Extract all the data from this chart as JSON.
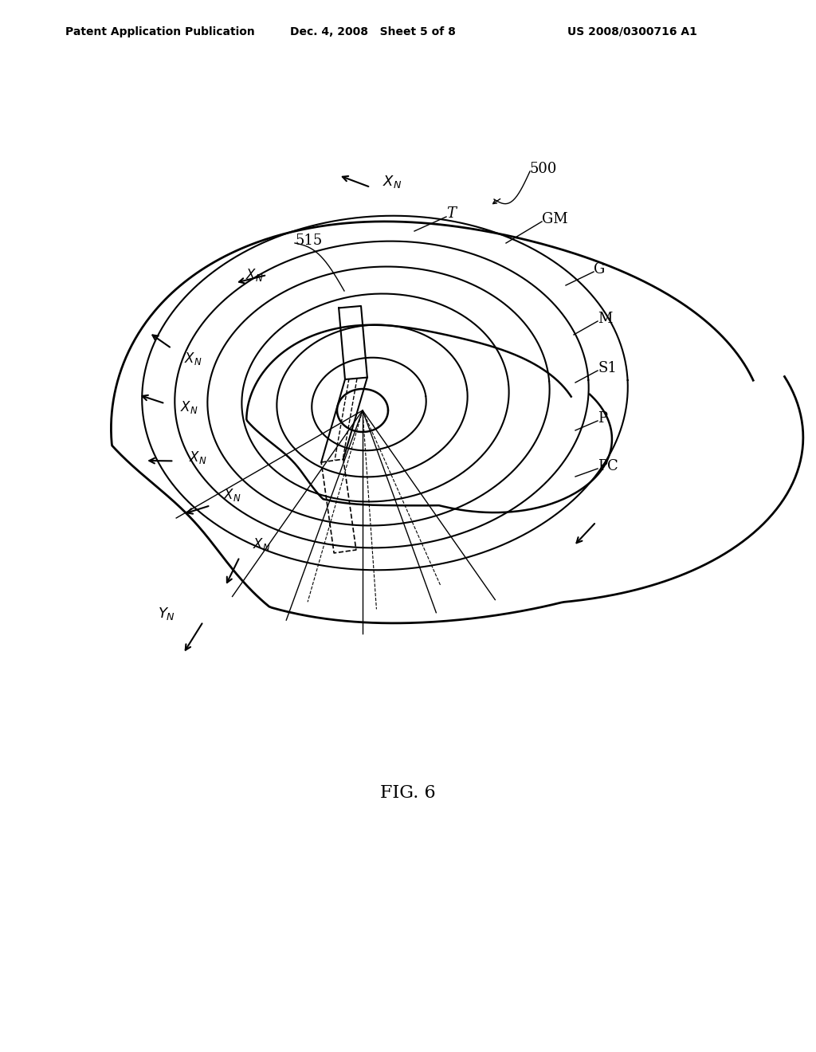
{
  "title": "FIG. 6",
  "header_left": "Patent Application Publication",
  "header_center": "Dec. 4, 2008   Sheet 5 of 8",
  "header_right": "US 2008/0300716 A1",
  "bg_color": "#ffffff",
  "line_color": "#000000"
}
